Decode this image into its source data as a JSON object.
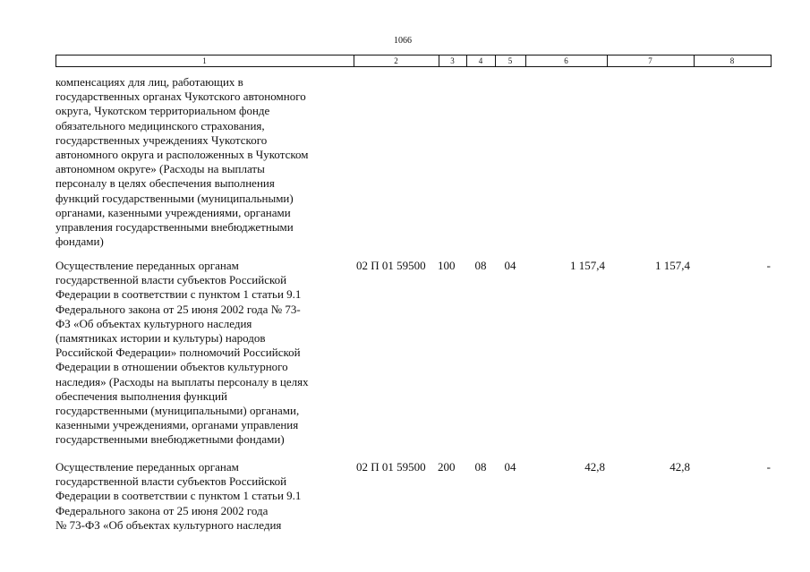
{
  "page_number": "1066",
  "table": {
    "header": [
      "1",
      "2",
      "3",
      "4",
      "5",
      "6",
      "7",
      "8"
    ],
    "rows": [
      {
        "lines": [
          "компенсациях для лиц, работающих в",
          "государственных органах Чукотского автономного",
          "округа, Чукотском территориальном фонде",
          "обязательного медицинского страхования,",
          "государственных учреждениях Чукотского",
          "автономного округа и расположенных в Чукотском",
          "автономном округе» (Расходы на выплаты",
          "персоналу в целях обеспечения выполнения",
          "функций государственными (муниципальными)",
          "органами, казенными учреждениями, органами",
          "управления государственными внебюджетными",
          "фондами)"
        ]
      },
      {
        "lines": [
          "Осуществление переданных органам",
          "государственной власти субъектов Российской",
          "Федерации в соответствии с пунктом 1 статьи 9.1",
          "Федерального закона от 25 июня 2002 года № 73-",
          "ФЗ «Об объектах культурного наследия",
          "(памятниках истории и культуры) народов",
          "Российской Федерации» полномочий Российской",
          "Федерации в отношении объектов культурного",
          "наследия» (Расходы на выплаты персоналу в целях",
          "обеспечения выполнения функций",
          "государственными (муниципальными) органами,",
          "казенными учреждениями, органами управления",
          "государственными внебюджетными фондами)"
        ],
        "cells": [
          "02 П 01 59500",
          "100",
          "08",
          "04",
          "1 157,4",
          "1 157,4",
          "-"
        ]
      },
      {
        "lines": [
          "Осуществление переданных органам",
          "государственной власти субъектов Российской",
          "Федерации в соответствии с пунктом 1 статьи 9.1",
          "Федерального закона от 25 июня 2002 года",
          "№ 73-ФЗ «Об объектах культурного наследия"
        ],
        "cells": [
          "02 П 01 59500",
          "200",
          "08",
          "04",
          "42,8",
          "42,8",
          "-"
        ]
      }
    ]
  }
}
